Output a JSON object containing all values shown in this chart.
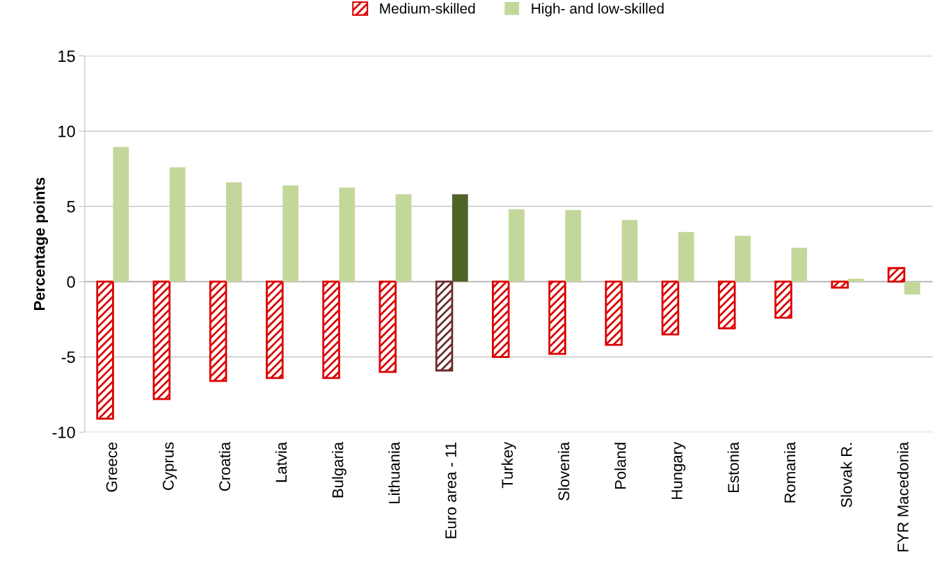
{
  "chart_data": {
    "type": "bar",
    "ylabel": "Percentage points",
    "categories": [
      "Greece",
      "Cyprus",
      "Croatia",
      "Latvia",
      "Bulgaria",
      "Lithuania",
      "Euro area - 11",
      "Turkey",
      "Slovenia",
      "Poland",
      "Hungary",
      "Estonia",
      "Romania",
      "Slovak R.",
      "FYR Macedonia"
    ],
    "series": [
      {
        "name": "Medium-skilled",
        "color": "#dd0000",
        "colors": [
          "#dd0000",
          "#dd0000",
          "#dd0000",
          "#dd0000",
          "#dd0000",
          "#dd0000",
          "#6b2a2a",
          "#dd0000",
          "#dd0000",
          "#dd0000",
          "#dd0000",
          "#dd0000",
          "#dd0000",
          "#dd0000",
          "#dd0000"
        ],
        "values": [
          -9.1,
          -7.8,
          -6.6,
          -6.4,
          -6.4,
          -6.0,
          -5.9,
          -5.0,
          -4.8,
          -4.2,
          -3.5,
          -3.1,
          -2.4,
          -0.4,
          0.9
        ]
      },
      {
        "name": "High- and low-skilled",
        "color": "#c4d79b",
        "colors": [
          "#c4d79b",
          "#c4d79b",
          "#c4d79b",
          "#c4d79b",
          "#c4d79b",
          "#c4d79b",
          "#4f6228",
          "#c4d79b",
          "#c4d79b",
          "#c4d79b",
          "#c4d79b",
          "#c4d79b",
          "#c4d79b",
          "#c4d79b",
          "#c4d79b"
        ],
        "values": [
          8.95,
          7.6,
          6.6,
          6.4,
          6.25,
          5.8,
          5.8,
          4.8,
          4.75,
          4.1,
          3.3,
          3.05,
          2.25,
          0.2,
          -0.85
        ]
      }
    ],
    "ylim": [
      -10,
      15
    ],
    "yticks": [
      -10,
      -5,
      0,
      5,
      10,
      15
    ],
    "grid": "y",
    "legend": "top"
  }
}
